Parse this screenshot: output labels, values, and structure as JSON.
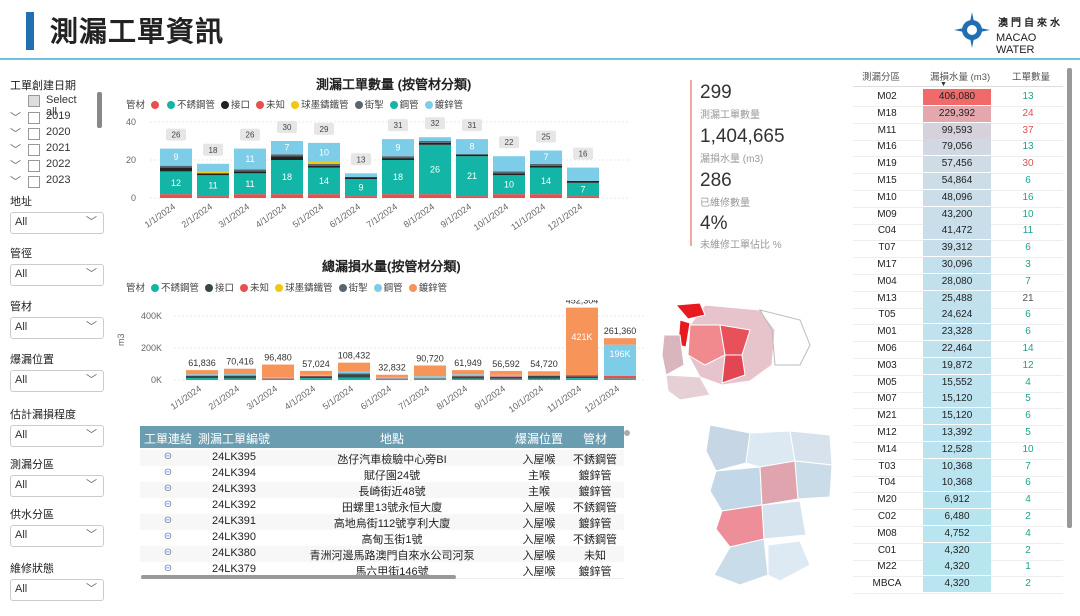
{
  "header": {
    "title": "測漏工單資訊",
    "logo_cn": "澳門自來水",
    "logo_en": "MACAO WATER"
  },
  "filters": {
    "date_label": "工單創建日期",
    "select_all": "Select all",
    "years": [
      "2019",
      "2020",
      "2021",
      "2022",
      "2023"
    ],
    "address": {
      "label": "地址",
      "value": "All"
    },
    "diameter": {
      "label": "管徑",
      "value": "All"
    },
    "material": {
      "label": "管材",
      "value": "All"
    },
    "location": {
      "label": "爆漏位置",
      "value": "All"
    },
    "severity": {
      "label": "估計漏損程度",
      "value": "All"
    },
    "zone": {
      "label": "測漏分區",
      "value": "All"
    },
    "supply": {
      "label": "供水分區",
      "value": "All"
    },
    "status": {
      "label": "維修狀態",
      "value": "All"
    }
  },
  "legend1": {
    "prefix": "管材",
    "items": [
      {
        "name": "",
        "color": "#E8504F"
      },
      {
        "name": "不銹鋼管",
        "color": "#12B5A6"
      },
      {
        "name": "接口",
        "color": "#222222"
      },
      {
        "name": "未知",
        "color": "#E8504F"
      },
      {
        "name": "球墨鑄鐵管",
        "color": "#F2C80F"
      },
      {
        "name": "街掣",
        "color": "#5A6670"
      },
      {
        "name": "鋼管",
        "color": "#12B5A6"
      },
      {
        "name": "鍍鋅管",
        "color": "#7DCDE8"
      }
    ]
  },
  "legend2": {
    "prefix": "管材",
    "items": [
      {
        "name": "不銹鋼管",
        "color": "#12B5A6"
      },
      {
        "name": "接口",
        "color": "#374649"
      },
      {
        "name": "未知",
        "color": "#E8504F"
      },
      {
        "name": "球墨鑄鐵管",
        "color": "#F2C80F"
      },
      {
        "name": "街掣",
        "color": "#5A6670"
      },
      {
        "name": "鋼管",
        "color": "#7DCDE8"
      },
      {
        "name": "鍍鋅管",
        "color": "#F7945A"
      }
    ]
  },
  "chart_data": [
    {
      "type": "bar",
      "title": "測漏工單數量 (按管材分類)",
      "categories": [
        "1/1/2024",
        "2/1/2024",
        "3/1/2024",
        "4/1/2024",
        "5/1/2024",
        "6/1/2024",
        "7/1/2024",
        "8/1/2024",
        "9/1/2024",
        "10/1/2024",
        "11/1/2024",
        "12/1/2024"
      ],
      "ylim": [
        0,
        40
      ],
      "yticks": [
        0,
        20,
        40
      ],
      "totals": [
        26,
        18,
        26,
        30,
        29,
        13,
        31,
        32,
        31,
        22,
        25,
        16
      ],
      "series": [
        {
          "name": "未知",
          "color": "#E8504F",
          "values": [
            2,
            1,
            2,
            2,
            2,
            1,
            2,
            2,
            1,
            2,
            2,
            1
          ]
        },
        {
          "name": "鋼管",
          "color": "#12B5A6",
          "values": [
            12,
            11,
            11,
            18,
            14,
            9,
            18,
            26,
            21,
            10,
            14,
            7
          ]
        },
        {
          "name": "接口",
          "color": "#222222",
          "values": [
            2,
            1,
            1,
            2,
            1,
            1,
            1,
            1,
            1,
            1,
            1,
            1
          ]
        },
        {
          "name": "街掣",
          "color": "#5A6670",
          "values": [
            1,
            0,
            1,
            1,
            1,
            0,
            1,
            1,
            0,
            1,
            1,
            0
          ]
        },
        {
          "name": "球墨鑄鐵管",
          "color": "#F2C80F",
          "values": [
            0,
            1,
            0,
            0,
            1,
            0,
            0,
            0,
            0,
            0,
            0,
            0
          ]
        },
        {
          "name": "鍍鋅管",
          "color": "#7DCDE8",
          "values": [
            9,
            4,
            11,
            7,
            10,
            2,
            9,
            2,
            8,
            8,
            7,
            7
          ]
        }
      ],
      "labels": [
        {
          "idx": 0,
          "s": 1,
          "text": "12"
        },
        {
          "idx": 0,
          "s": 5,
          "text": "9"
        },
        {
          "idx": 1,
          "s": 1,
          "text": "11"
        },
        {
          "idx": 2,
          "s": 1,
          "text": "11"
        },
        {
          "idx": 2,
          "s": 5,
          "text": "11"
        },
        {
          "idx": 3,
          "s": 1,
          "text": "18"
        },
        {
          "idx": 3,
          "s": 5,
          "text": "7"
        },
        {
          "idx": 4,
          "s": 1,
          "text": "14"
        },
        {
          "idx": 4,
          "s": 5,
          "text": "10"
        },
        {
          "idx": 5,
          "s": 1,
          "text": "9"
        },
        {
          "idx": 6,
          "s": 1,
          "text": "18"
        },
        {
          "idx": 6,
          "s": 5,
          "text": "9"
        },
        {
          "idx": 7,
          "s": 1,
          "text": "26"
        },
        {
          "idx": 8,
          "s": 1,
          "text": "21"
        },
        {
          "idx": 8,
          "s": 5,
          "text": "8"
        },
        {
          "idx": 9,
          "s": 1,
          "text": "10"
        },
        {
          "idx": 10,
          "s": 1,
          "text": "14"
        },
        {
          "idx": 10,
          "s": 5,
          "text": "7"
        },
        {
          "idx": 11,
          "s": 1,
          "text": "7"
        }
      ]
    },
    {
      "type": "bar",
      "title": "總漏損水量(按管材分類)",
      "ylabel": "m3",
      "categories": [
        "1/1/2024",
        "2/1/2024",
        "3/1/2024",
        "4/1/2024",
        "5/1/2024",
        "6/1/2024",
        "7/1/2024",
        "8/1/2024",
        "9/1/2024",
        "10/1/2024",
        "11/1/2024",
        "12/1/2024"
      ],
      "ylim": [
        0,
        450000
      ],
      "yticks": [
        {
          "v": 0,
          "t": "0K"
        },
        {
          "v": 200000,
          "t": "200K"
        },
        {
          "v": 400000,
          "t": "400K"
        }
      ],
      "totals": [
        61836,
        70416,
        96480,
        57024,
        108432,
        32832,
        90720,
        61949,
        56592,
        54720,
        452304,
        261360
      ],
      "total_labels": [
        "61,836",
        "70,416",
        "96,480",
        "57,024",
        "108,432",
        "32,832",
        "90,720",
        "61,949",
        "56,592",
        "54,720",
        "452,304",
        "261,360"
      ],
      "series": [
        {
          "name": "不銹鋼管",
          "color": "#12B5A6",
          "values": [
            12000,
            10000,
            8000,
            12000,
            15000,
            6000,
            10000,
            9000,
            8000,
            9000,
            12000,
            10000
          ]
        },
        {
          "name": "接口",
          "color": "#374649",
          "values": [
            14000,
            15000,
            0,
            10000,
            22000,
            2000,
            0,
            14000,
            12000,
            16000,
            10000,
            0
          ]
        },
        {
          "name": "未知",
          "color": "#E8504F",
          "values": [
            4000,
            5000,
            4000,
            4000,
            6000,
            2000,
            4000,
            4000,
            4000,
            3000,
            9000,
            15000
          ]
        },
        {
          "name": "鋼管",
          "color": "#7DCDE8",
          "values": [
            6000,
            7000,
            6000,
            6000,
            8000,
            8000,
            10000,
            9000,
            8000,
            4000,
            0,
            196000
          ]
        },
        {
          "name": "鍍鋅管",
          "color": "#F7945A",
          "values": [
            25836,
            33416,
            78480,
            25024,
            57432,
            14832,
            66720,
            25949,
            24592,
            22720,
            421304,
            40360
          ]
        }
      ],
      "inner_labels": [
        {
          "idx": 10,
          "text": "421K"
        },
        {
          "idx": 11,
          "text": "196K"
        }
      ]
    }
  ],
  "kpis": [
    {
      "value": "299",
      "label": "測漏工單數量"
    },
    {
      "value": "1,404,665",
      "label": "漏損水量 (m3)"
    },
    {
      "value": "286",
      "label": "已維修數量"
    },
    {
      "value": "4%",
      "label": "未維修工單佔比 %"
    }
  ],
  "table": {
    "headers": [
      "工單連結",
      "測漏工單編號",
      "地點",
      "爆漏位置",
      "管材"
    ],
    "rows": [
      {
        "id": "24LK395",
        "place": "氹仔汽車檢驗中心旁BI",
        "loc": "入屋喉",
        "mat": "不銹鋼管"
      },
      {
        "id": "24LK394",
        "place": "賦仔園24號",
        "loc": "主喉",
        "mat": "鍍鋅管"
      },
      {
        "id": "24LK393",
        "place": "長崎街近48號",
        "loc": "主喉",
        "mat": "鍍鋅管"
      },
      {
        "id": "24LK392",
        "place": "田螺里13號永恒大廈",
        "loc": "入屋喉",
        "mat": "不銹鋼管"
      },
      {
        "id": "24LK391",
        "place": "高地烏街112號亨利大廈",
        "loc": "入屋喉",
        "mat": "鍍鋅管"
      },
      {
        "id": "24LK390",
        "place": "高甸玉街1號",
        "loc": "入屋喉",
        "mat": "不銹鋼管"
      },
      {
        "id": "24LK380",
        "place": "青洲河邊馬路澳門自來水公司河泵",
        "loc": "入屋喉",
        "mat": "未知"
      },
      {
        "id": "24LK379",
        "place": "馬六甲街146號",
        "loc": "入屋喉",
        "mat": "鍍鋅管"
      }
    ]
  },
  "right_table": {
    "headers": [
      "測漏分區",
      "漏損水量 (m3)",
      "工單數量"
    ],
    "max": 406080,
    "rows": [
      {
        "zone": "M02",
        "vol": "406,080",
        "n": "13",
        "v": 406080,
        "bar": "#F06A6A",
        "ncolor": "#1BA38F"
      },
      {
        "zone": "M18",
        "vol": "229,392",
        "n": "24",
        "v": 229392,
        "bar": "#E4A7AE",
        "ncolor": "#D9534F"
      },
      {
        "zone": "M11",
        "vol": "99,593",
        "n": "37",
        "v": 99593,
        "bar": "#D6D2DC",
        "ncolor": "#D9534F"
      },
      {
        "zone": "M16",
        "vol": "79,056",
        "n": "13",
        "v": 79056,
        "bar": "#D2D8E2",
        "ncolor": "#1BA38F"
      },
      {
        "zone": "M19",
        "vol": "57,456",
        "n": "30",
        "v": 57456,
        "bar": "#CFDCE6",
        "ncolor": "#D9534F"
      },
      {
        "zone": "M15",
        "vol": "54,864",
        "n": "6",
        "v": 54864,
        "bar": "#CDDDE7",
        "ncolor": "#1BA38F"
      },
      {
        "zone": "M10",
        "vol": "48,096",
        "n": "16",
        "v": 48096,
        "bar": "#CADDE8",
        "ncolor": "#1BA38F"
      },
      {
        "zone": "M09",
        "vol": "43,200",
        "n": "10",
        "v": 43200,
        "bar": "#C9DEE9",
        "ncolor": "#1BA38F"
      },
      {
        "zone": "C04",
        "vol": "41,472",
        "n": "11",
        "v": 41472,
        "bar": "#C8DEEA",
        "ncolor": "#1BA38F"
      },
      {
        "zone": "T07",
        "vol": "39,312",
        "n": "6",
        "v": 39312,
        "bar": "#C7DFEA",
        "ncolor": "#1BA38F"
      },
      {
        "zone": "M17",
        "vol": "30,096",
        "n": "3",
        "v": 30096,
        "bar": "#C3E0EC",
        "ncolor": "#1BA38F"
      },
      {
        "zone": "M04",
        "vol": "28,080",
        "n": "7",
        "v": 28080,
        "bar": "#C2E0EC",
        "ncolor": "#1BA38F"
      },
      {
        "zone": "M13",
        "vol": "25,488",
        "n": "21",
        "v": 25488,
        "bar": "#C1E1ED",
        "ncolor": "#555555"
      },
      {
        "zone": "T05",
        "vol": "24,624",
        "n": "6",
        "v": 24624,
        "bar": "#C0E1ED",
        "ncolor": "#1BA38F"
      },
      {
        "zone": "M01",
        "vol": "23,328",
        "n": "6",
        "v": 23328,
        "bar": "#C0E1EE",
        "ncolor": "#1BA38F"
      },
      {
        "zone": "M06",
        "vol": "22,464",
        "n": "14",
        "v": 22464,
        "bar": "#BFE2EE",
        "ncolor": "#1BA38F"
      },
      {
        "zone": "M03",
        "vol": "19,872",
        "n": "12",
        "v": 19872,
        "bar": "#BEE2EE",
        "ncolor": "#1BA38F"
      },
      {
        "zone": "M05",
        "vol": "15,552",
        "n": "4",
        "v": 15552,
        "bar": "#BCE3EF",
        "ncolor": "#1BA38F"
      },
      {
        "zone": "M07",
        "vol": "15,120",
        "n": "5",
        "v": 15120,
        "bar": "#BCE3EF",
        "ncolor": "#1BA38F"
      },
      {
        "zone": "M21",
        "vol": "15,120",
        "n": "6",
        "v": 15120,
        "bar": "#BCE3EF",
        "ncolor": "#1BA38F"
      },
      {
        "zone": "M12",
        "vol": "13,392",
        "n": "5",
        "v": 13392,
        "bar": "#BBE3EF",
        "ncolor": "#1BA38F"
      },
      {
        "zone": "M14",
        "vol": "12,528",
        "n": "10",
        "v": 12528,
        "bar": "#BBE3EF",
        "ncolor": "#1BA38F"
      },
      {
        "zone": "T03",
        "vol": "10,368",
        "n": "7",
        "v": 10368,
        "bar": "#BAE4F0",
        "ncolor": "#1BA38F"
      },
      {
        "zone": "T04",
        "vol": "10,368",
        "n": "6",
        "v": 10368,
        "bar": "#BAE4F0",
        "ncolor": "#1BA38F"
      },
      {
        "zone": "M20",
        "vol": "6,912",
        "n": "4",
        "v": 6912,
        "bar": "#B8E4F0",
        "ncolor": "#1BA38F"
      },
      {
        "zone": "C02",
        "vol": "6,480",
        "n": "2",
        "v": 6480,
        "bar": "#B8E4F0",
        "ncolor": "#1BA38F"
      },
      {
        "zone": "M08",
        "vol": "4,752",
        "n": "4",
        "v": 4752,
        "bar": "#B8E5F0",
        "ncolor": "#1BA38F"
      },
      {
        "zone": "C01",
        "vol": "4,320",
        "n": "2",
        "v": 4320,
        "bar": "#B8E5F0",
        "ncolor": "#1BA38F"
      },
      {
        "zone": "M22",
        "vol": "4,320",
        "n": "1",
        "v": 4320,
        "bar": "#B8E5F0",
        "ncolor": "#1BA38F"
      },
      {
        "zone": "MBCA",
        "vol": "4,320",
        "n": "2",
        "v": 4320,
        "bar": "#B8E5F0",
        "ncolor": "#1BA38F"
      }
    ]
  }
}
